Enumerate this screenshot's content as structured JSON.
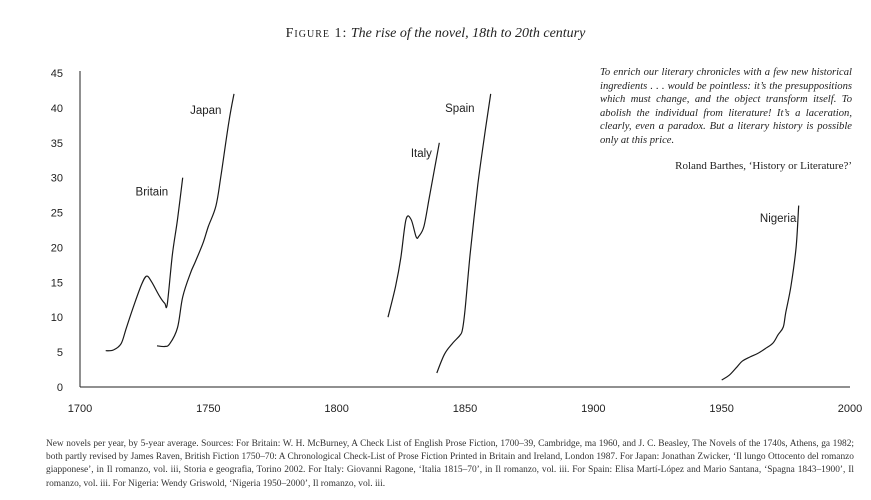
{
  "figure": {
    "label": "Figure 1:",
    "title": "The rise of the novel, 18th to 20th century"
  },
  "quote": {
    "text": "To enrich our literary chronicles with a few new historical ingredients . . . would be pointless: it’s the presuppositions which must change, and the object transform itself. To abolish the individual from literature! It’s a laceration, clearly, even a paradox. But a literary history is possible only at this price.",
    "attribution": "Roland Barthes, ‘History or Literature?’"
  },
  "caption": "New novels per year, by 5-year average. Sources: For Britain: W. H. McBurney, A Check List of English Prose Fiction, 1700–39, Cambridge, ma 1960, and J. C. Beasley, The Novels of the 1740s, Athens, ga 1982; both partly revised by James Raven, British Fiction 1750–70: A Chronological Check-List of Prose Fiction Printed in Britain and Ireland, London 1987. For Japan: Jonathan Zwicker, ‘Il lungo Ottocento del romanzo giapponese’, in Il romanzo, vol. iii, Storia e geografia, Torino 2002. For Italy: Giovanni Ragone, ‘Italia 1815–70’, in Il romanzo, vol. iii. For Spain: Elisa Martí-López and Mario Santana, ‘Spagna 1843–1900’, Il romanzo, vol. iii. For Nigeria: Wendy Griswold, ‘Nigeria 1950–2000’, Il romanzo, vol. iii.",
  "chart_data": {
    "type": "line",
    "title": "The rise of the novel, 18th to 20th century",
    "xlabel": "",
    "ylabel": "",
    "xlim": [
      1700,
      2000
    ],
    "ylim": [
      0,
      45
    ],
    "x_ticks": [
      1700,
      1750,
      1800,
      1850,
      1900,
      1950,
      2000
    ],
    "y_ticks": [
      0,
      5,
      10,
      15,
      20,
      25,
      30,
      35,
      40,
      45
    ],
    "grid": false,
    "legend": "none (series labelled directly)",
    "series": [
      {
        "name": "Britain",
        "x": [
          1710,
          1713,
          1716,
          1718,
          1721,
          1724,
          1726,
          1728,
          1731,
          1733,
          1734,
          1736,
          1738,
          1740
        ],
        "y": [
          5.2,
          5.3,
          6.2,
          8.4,
          11.7,
          14.7,
          15.9,
          15,
          13,
          12,
          11.9,
          19,
          24,
          30
        ]
      },
      {
        "name": "Japan",
        "x": [
          1730,
          1733,
          1735,
          1738,
          1740,
          1743,
          1745,
          1748,
          1750,
          1753,
          1755,
          1758,
          1760
        ],
        "y": [
          5.9,
          5.8,
          6.2,
          8.5,
          12.9,
          16.3,
          18,
          20.7,
          23,
          26,
          30.5,
          38,
          42
        ]
      },
      {
        "name": "Italy",
        "x": [
          1820,
          1823,
          1825,
          1827,
          1829,
          1831,
          1832,
          1834,
          1836,
          1838,
          1840
        ],
        "y": [
          10,
          14.5,
          18.5,
          24,
          24,
          21.5,
          21.6,
          23,
          27,
          31,
          35
        ]
      },
      {
        "name": "Spain",
        "x": [
          1839,
          1842,
          1845,
          1848,
          1849,
          1850,
          1852,
          1855,
          1858,
          1860
        ],
        "y": [
          2,
          4.7,
          6.2,
          7.4,
          8.2,
          11,
          19,
          29,
          37,
          42
        ]
      },
      {
        "name": "Nigeria",
        "x": [
          1950,
          1953,
          1956,
          1958,
          1961,
          1964,
          1967,
          1970,
          1972,
          1974,
          1975,
          1977,
          1979,
          1980
        ],
        "y": [
          1,
          1.7,
          2.9,
          3.7,
          4.3,
          4.8,
          5.5,
          6.3,
          7.5,
          8.6,
          10.7,
          14.5,
          20,
          26
        ]
      }
    ],
    "series_labels": [
      {
        "name": "Britain",
        "x": 1728,
        "y": 28
      },
      {
        "name": "Japan",
        "x": 1749,
        "y": 39.7
      },
      {
        "name": "Italy",
        "x": 1833,
        "y": 33.5
      },
      {
        "name": "Spain",
        "x": 1848,
        "y": 40
      },
      {
        "name": "Nigeria",
        "x": 1972,
        "y": 24.2
      }
    ]
  }
}
